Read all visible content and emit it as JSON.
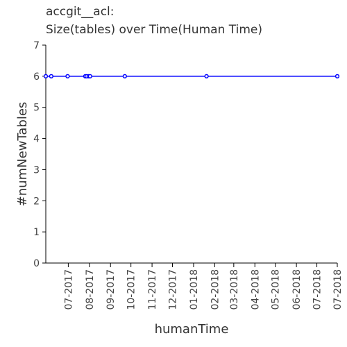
{
  "chart_data": {
    "type": "line",
    "title_lines": [
      "accgit__acl:",
      "Size(tables) over Time(Human Time)"
    ],
    "xlabel": "humanTime",
    "ylabel": "#numNewTables",
    "ylim": [
      0,
      7
    ],
    "yticks": [
      0,
      1,
      2,
      3,
      4,
      5,
      6,
      7
    ],
    "xlim": [
      "2017-05-29",
      "2018-07-31"
    ],
    "xtick_values": [
      "2017-07-01",
      "2017-08-01",
      "2017-09-01",
      "2017-10-01",
      "2017-11-01",
      "2017-12-01",
      "2018-01-01",
      "2018-02-01",
      "2018-03-01",
      "2018-04-01",
      "2018-05-01",
      "2018-06-01",
      "2018-07-01",
      "2018-07-31"
    ],
    "xtick_labels": [
      "07-2017",
      "08-2017",
      "09-2017",
      "10-2017",
      "11-2017",
      "12-2017",
      "01-2018",
      "02-2018",
      "03-2018",
      "04-2018",
      "05-2018",
      "06-2018",
      "07-2018",
      "07-2018"
    ],
    "grid": false,
    "series": [
      {
        "color": "#0000ff",
        "x": [
          "2017-05-29",
          "2017-06-06",
          "2017-06-30",
          "2017-07-26",
          "2017-07-28",
          "2017-07-31",
          "2017-08-02",
          "2017-09-22",
          "2018-01-20",
          "2018-07-31"
        ],
        "y": [
          6,
          6,
          6,
          6,
          6,
          6,
          6,
          6,
          6,
          6
        ]
      }
    ]
  }
}
